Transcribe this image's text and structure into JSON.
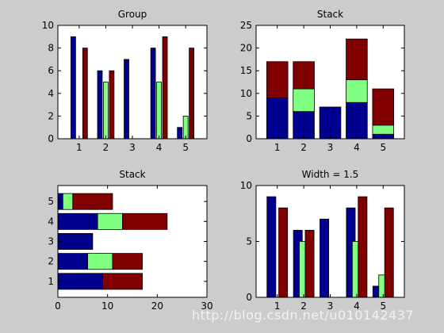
{
  "colors": {
    "figure_bg": "#cccccc",
    "axes_bg": "#ffffff",
    "series": [
      "#00008f",
      "#80ff80",
      "#800000"
    ]
  },
  "watermark": "http://blog.csdn.net/u010142437",
  "chart_data": [
    {
      "type": "bar",
      "mode": "grouped",
      "orientation": "vertical",
      "title": "Group",
      "categories": [
        1,
        2,
        3,
        4,
        5
      ],
      "series": [
        {
          "values": [
            9,
            6,
            7,
            8,
            1
          ]
        },
        {
          "values": [
            0,
            5,
            0,
            5,
            2
          ]
        },
        {
          "values": [
            8,
            6,
            0,
            9,
            8
          ]
        }
      ],
      "xlim": [
        0.2,
        5.8
      ],
      "ylim": [
        0,
        10
      ],
      "xticks": [
        1,
        2,
        3,
        4,
        5
      ],
      "yticks": [
        0,
        2,
        4,
        6,
        8,
        10
      ],
      "bar_width": 0.8,
      "grid": false,
      "legend": "none"
    },
    {
      "type": "bar",
      "mode": "stacked",
      "orientation": "vertical",
      "title": "Stack",
      "categories": [
        1,
        2,
        3,
        4,
        5
      ],
      "series": [
        {
          "values": [
            9,
            6,
            7,
            8,
            1
          ]
        },
        {
          "values": [
            0,
            5,
            0,
            5,
            2
          ]
        },
        {
          "values": [
            8,
            6,
            0,
            9,
            8
          ]
        }
      ],
      "xlim": [
        0.2,
        5.8
      ],
      "ylim": [
        0,
        25
      ],
      "xticks": [
        1,
        2,
        3,
        4,
        5
      ],
      "yticks": [
        0,
        5,
        10,
        15,
        20,
        25
      ],
      "bar_width": 0.8,
      "grid": false,
      "legend": "none"
    },
    {
      "type": "bar",
      "mode": "stacked",
      "orientation": "horizontal",
      "title": "Stack",
      "categories": [
        1,
        2,
        3,
        4,
        5
      ],
      "series": [
        {
          "values": [
            9,
            6,
            7,
            8,
            1
          ]
        },
        {
          "values": [
            0,
            5,
            0,
            5,
            2
          ]
        },
        {
          "values": [
            8,
            6,
            0,
            9,
            8
          ]
        }
      ],
      "xlim": [
        0,
        30
      ],
      "ylim": [
        0.2,
        5.8
      ],
      "xticks": [
        0,
        10,
        20,
        30
      ],
      "yticks": [
        1,
        2,
        3,
        4,
        5
      ],
      "bar_width": 0.8,
      "grid": false,
      "legend": "none"
    },
    {
      "type": "bar",
      "mode": "grouped",
      "orientation": "vertical",
      "title": "Width = 1.5",
      "categories": [
        1,
        2,
        3,
        4,
        5
      ],
      "series": [
        {
          "values": [
            9,
            6,
            7,
            8,
            1
          ]
        },
        {
          "values": [
            0,
            5,
            0,
            5,
            2
          ]
        },
        {
          "values": [
            8,
            6,
            0,
            9,
            8
          ]
        }
      ],
      "xlim": [
        0.2,
        5.8
      ],
      "ylim": [
        0,
        10
      ],
      "xticks": [
        1,
        2,
        3,
        4,
        5
      ],
      "yticks": [
        0,
        5,
        10
      ],
      "bar_width": 1.5,
      "grid": false,
      "legend": "none"
    }
  ]
}
